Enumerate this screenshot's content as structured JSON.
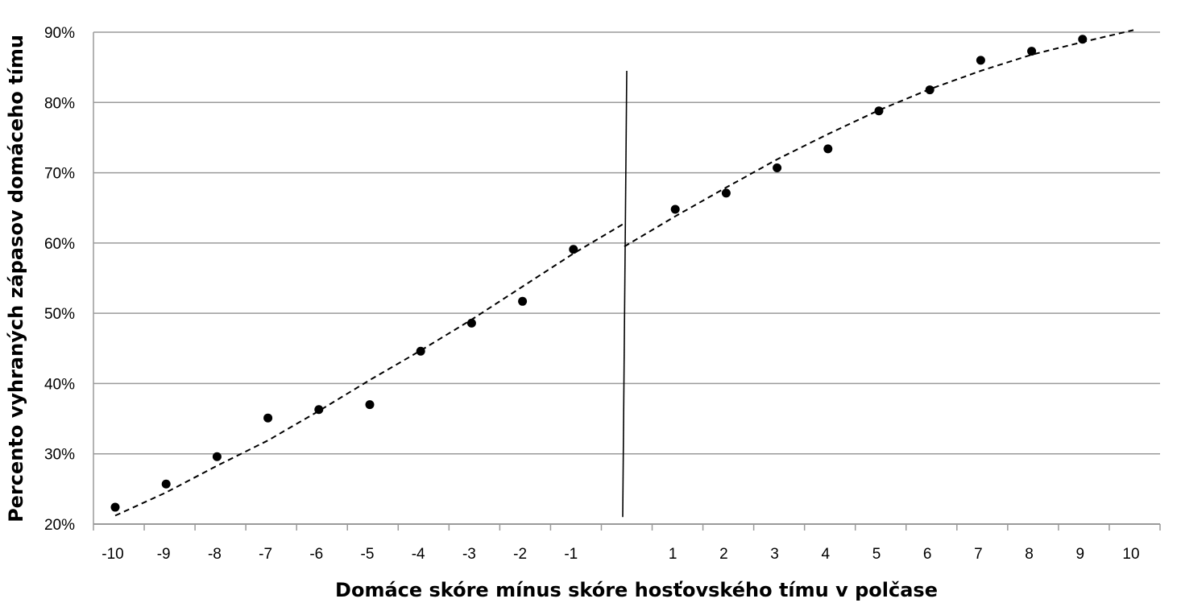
{
  "chart_data": {
    "type": "scatter",
    "title": "",
    "xlabel": "Domáce skóre mínus skóre hosťovského tímu v polčase",
    "ylabel": "Percento vyhraných zápasov domáceho tímu",
    "x_ticks": [
      "-10",
      "-9",
      "-8",
      "-7",
      "-6",
      "-5",
      "-4",
      "-3",
      "-2",
      "-1",
      "1",
      "2",
      "3",
      "4",
      "5",
      "6",
      "7",
      "8",
      "9",
      "10"
    ],
    "y_ticks": [
      "20%",
      "30%",
      "40%",
      "50%",
      "60%",
      "70%",
      "80%",
      "90%"
    ],
    "ylim": [
      20,
      90
    ],
    "xlim": [
      -10,
      10
    ],
    "grid": "horizontal",
    "legend": "none",
    "points": [
      {
        "x": -10,
        "y": 22.4
      },
      {
        "x": -9,
        "y": 25.7
      },
      {
        "x": -8,
        "y": 29.6
      },
      {
        "x": -7,
        "y": 35.1
      },
      {
        "x": -6,
        "y": 36.3
      },
      {
        "x": -5,
        "y": 37.0
      },
      {
        "x": -4,
        "y": 44.6
      },
      {
        "x": -3,
        "y": 48.6
      },
      {
        "x": -2,
        "y": 51.7
      },
      {
        "x": -1,
        "y": 59.1
      },
      {
        "x": 1,
        "y": 64.8
      },
      {
        "x": 2,
        "y": 67.1
      },
      {
        "x": 3,
        "y": 70.7
      },
      {
        "x": 4,
        "y": 73.4
      },
      {
        "x": 5,
        "y": 78.8
      },
      {
        "x": 6,
        "y": 81.8
      },
      {
        "x": 7,
        "y": 86.0
      },
      {
        "x": 8,
        "y": 87.3
      },
      {
        "x": 9,
        "y": 89.0
      }
    ],
    "trend_left": [
      {
        "x": -10,
        "y": 21.2
      },
      {
        "x": -9,
        "y": 24.5
      },
      {
        "x": -8,
        "y": 28.3
      },
      {
        "x": -7,
        "y": 31.9
      },
      {
        "x": -6,
        "y": 36.1
      },
      {
        "x": -5,
        "y": 40.5
      },
      {
        "x": -4,
        "y": 44.7
      },
      {
        "x": -3,
        "y": 49.1
      },
      {
        "x": -2,
        "y": 53.8
      },
      {
        "x": -1,
        "y": 58.5
      },
      {
        "x": 0,
        "y": 62.8
      }
    ],
    "trend_right": [
      {
        "x": 0,
        "y": 59.5
      },
      {
        "x": 1,
        "y": 63.8
      },
      {
        "x": 2,
        "y": 67.9
      },
      {
        "x": 3,
        "y": 71.9
      },
      {
        "x": 4,
        "y": 75.5
      },
      {
        "x": 5,
        "y": 78.9
      },
      {
        "x": 6,
        "y": 81.9
      },
      {
        "x": 7,
        "y": 84.5
      },
      {
        "x": 8,
        "y": 86.8
      },
      {
        "x": 9,
        "y": 88.6
      },
      {
        "x": 10,
        "y": 90.3
      }
    ],
    "divider": {
      "x": 0,
      "y_from": 21.0,
      "y_to": 84.5
    },
    "colors": {
      "points": "#000000",
      "grid": "#9a9a9a",
      "trend": "#000000"
    }
  }
}
